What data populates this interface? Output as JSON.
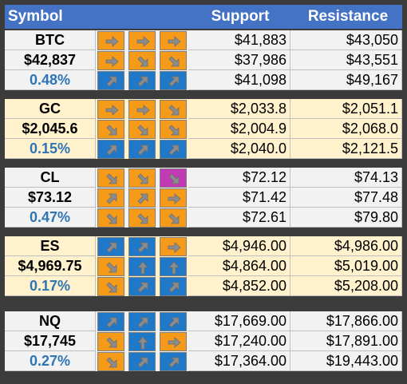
{
  "header": {
    "symbol": "Symbol",
    "support": "Support",
    "resistance": "Resistance"
  },
  "colors": {
    "header_bg": "#4472c4",
    "row_light": "#f2f2f2",
    "row_cream": "#fff2cc",
    "arrow_orange": "#f59b19",
    "arrow_blue": "#1f78c8",
    "arrow_magenta": "#c23ab5",
    "pct_blue": "#2e75b6"
  },
  "groups": [
    {
      "name": "btc",
      "bg": "#f2f2f2",
      "rows": [
        {
          "label": "BTC",
          "label_style": "symbol",
          "arrows": [
            [
              "right",
              "orange"
            ],
            [
              "right",
              "orange"
            ],
            [
              "right",
              "orange"
            ]
          ],
          "support": "$41,883",
          "resistance": "$43,050"
        },
        {
          "label": "$42,837",
          "label_style": "price",
          "arrows": [
            [
              "right",
              "orange"
            ],
            [
              "down-right",
              "orange"
            ],
            [
              "down-right",
              "orange"
            ]
          ],
          "support": "$37,986",
          "resistance": "$43,551"
        },
        {
          "label": "0.48%",
          "label_style": "pct",
          "arrows": [
            [
              "up-right",
              "blue"
            ],
            [
              "up-right",
              "blue"
            ],
            [
              "up-right",
              "blue"
            ]
          ],
          "support": "$41,098",
          "resistance": "$49,167"
        }
      ]
    },
    {
      "name": "gc",
      "bg": "#fff2cc",
      "rows": [
        {
          "label": "GC",
          "label_style": "symbol",
          "arrows": [
            [
              "right",
              "orange"
            ],
            [
              "right",
              "orange"
            ],
            [
              "down-right",
              "orange"
            ]
          ],
          "support": "$2,033.8",
          "resistance": "$2,051.1"
        },
        {
          "label": "$2,045.6",
          "label_style": "price",
          "arrows": [
            [
              "down-right",
              "orange"
            ],
            [
              "down-right",
              "orange"
            ],
            [
              "down-right",
              "orange"
            ]
          ],
          "support": "$2,004.9",
          "resistance": "$2,068.0"
        },
        {
          "label": "0.15%",
          "label_style": "pct",
          "arrows": [
            [
              "up-right",
              "blue"
            ],
            [
              "up-right",
              "blue"
            ],
            [
              "up-right",
              "blue"
            ]
          ],
          "support": "$2,040.0",
          "resistance": "$2,121.5"
        }
      ]
    },
    {
      "name": "cl",
      "bg": "#f2f2f2",
      "rows": [
        {
          "label": "CL",
          "label_style": "symbol",
          "arrows": [
            [
              "down-right",
              "orange"
            ],
            [
              "down-right",
              "orange"
            ],
            [
              "down-right",
              "magenta"
            ]
          ],
          "support": "$72.12",
          "resistance": "$74.13"
        },
        {
          "label": "$73.12",
          "label_style": "price",
          "arrows": [
            [
              "up-right",
              "orange"
            ],
            [
              "up-right",
              "orange"
            ],
            [
              "right",
              "orange"
            ]
          ],
          "support": "$71.42",
          "resistance": "$77.48"
        },
        {
          "label": "0.47%",
          "label_style": "pct",
          "arrows": [
            [
              "down-right",
              "orange"
            ],
            [
              "down-right",
              "orange"
            ],
            [
              "down-right",
              "orange"
            ]
          ],
          "support": "$72.61",
          "resistance": "$79.80"
        }
      ]
    },
    {
      "name": "es",
      "bg": "#fff2cc",
      "rows": [
        {
          "label": "ES",
          "label_style": "symbol",
          "arrows": [
            [
              "up-right",
              "blue"
            ],
            [
              "up-right",
              "blue"
            ],
            [
              "right",
              "orange"
            ]
          ],
          "support": "$4,946.00",
          "resistance": "$4,986.00"
        },
        {
          "label": "$4,969.75",
          "label_style": "price",
          "arrows": [
            [
              "down-right",
              "orange"
            ],
            [
              "up",
              "blue"
            ],
            [
              "up",
              "blue"
            ]
          ],
          "support": "$4,864.00",
          "resistance": "$5,019.00"
        },
        {
          "label": "0.17%",
          "label_style": "pct",
          "arrows": [
            [
              "down-right",
              "orange"
            ],
            [
              "up-right",
              "blue"
            ],
            [
              "up-right",
              "blue"
            ]
          ],
          "support": "$4,852.00",
          "resistance": "$5,208.00"
        }
      ]
    },
    {
      "name": "nq",
      "bg": "#f2f2f2",
      "rows": [
        {
          "label": "NQ",
          "label_style": "symbol",
          "arrows": [
            [
              "up-right",
              "blue"
            ],
            [
              "up-right",
              "blue"
            ],
            [
              "up-right",
              "blue"
            ]
          ],
          "support": "$17,669.00",
          "resistance": "$17,866.00"
        },
        {
          "label": "$17,745",
          "label_style": "price",
          "arrows": [
            [
              "down-right",
              "orange"
            ],
            [
              "up",
              "blue"
            ],
            [
              "right",
              "orange"
            ]
          ],
          "support": "$17,240.00",
          "resistance": "$17,891.00"
        },
        {
          "label": "0.27%",
          "label_style": "pct",
          "arrows": [
            [
              "down-right",
              "orange"
            ],
            [
              "up-right",
              "blue"
            ],
            [
              "up-right",
              "blue"
            ]
          ],
          "support": "$17,364.00",
          "resistance": "$19,443.00"
        }
      ]
    }
  ]
}
